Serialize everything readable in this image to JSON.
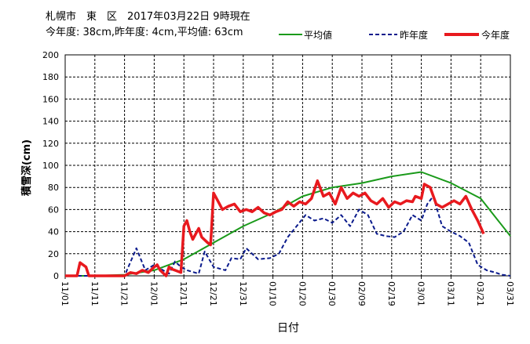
{
  "chart_data": {
    "type": "line",
    "title": "札幌市　東　区　2017年03月22日 9時現在",
    "subtitle": "今年度: 38cm,昨年度:  4cm,平均値: 63cm",
    "xlabel": "日付",
    "ylabel": "積雪深(cm)",
    "ylim": [
      0,
      200
    ],
    "yticks": [
      "0",
      "20",
      "40",
      "60",
      "80",
      "100",
      "120",
      "140",
      "160",
      "180",
      "200"
    ],
    "xlim": [
      "11/01",
      "03/31"
    ],
    "xticks": [
      "11/01",
      "11/11",
      "11/21",
      "12/01",
      "12/11",
      "12/21",
      "12/31",
      "01/10",
      "01/20",
      "01/30",
      "02/09",
      "02/19",
      "03/01",
      "03/11",
      "03/21",
      "03/31"
    ],
    "grid": true,
    "legend_position": "top-right",
    "series": [
      {
        "name": "平均値",
        "style": "solid",
        "color": "#1a9a1a",
        "x": [
          "11/01",
          "11/11",
          "11/21",
          "12/01",
          "12/11",
          "12/21",
          "12/31",
          "01/10",
          "01/20",
          "01/30",
          "02/09",
          "02/19",
          "03/01",
          "03/11",
          "03/21",
          "03/31"
        ],
        "y": [
          0,
          0,
          1,
          5,
          15,
          30,
          45,
          57,
          72,
          80,
          84,
          90,
          94,
          84,
          70,
          36
        ]
      },
      {
        "name": "昨年度",
        "style": "dashed",
        "color": "#0a1a8c",
        "x": [
          "11/01",
          "11/10",
          "11/21",
          "11/25",
          "11/28",
          "12/01",
          "12/04",
          "12/06",
          "12/08",
          "12/10",
          "12/12",
          "12/16",
          "12/18",
          "12/21",
          "12/25",
          "12/27",
          "12/30",
          "01/01",
          "01/05",
          "01/09",
          "01/12",
          "01/15",
          "01/18",
          "01/21",
          "01/24",
          "01/27",
          "01/30",
          "02/02",
          "02/05",
          "02/08",
          "02/11",
          "02/14",
          "02/17",
          "02/20",
          "02/23",
          "02/26",
          "03/01",
          "03/03",
          "03/05",
          "03/08",
          "03/11",
          "03/14",
          "03/17",
          "03/20",
          "03/23",
          "03/26",
          "03/28",
          "03/31"
        ],
        "y": [
          0,
          0,
          0,
          25,
          5,
          10,
          5,
          2,
          13,
          8,
          5,
          2,
          22,
          8,
          5,
          16,
          15,
          25,
          15,
          16,
          20,
          35,
          45,
          55,
          50,
          52,
          48,
          55,
          45,
          60,
          55,
          38,
          36,
          35,
          40,
          55,
          50,
          65,
          72,
          45,
          40,
          36,
          30,
          10,
          5,
          3,
          1,
          0
        ]
      },
      {
        "name": "今年度",
        "style": "solid",
        "color": "#e8191e",
        "x": [
          "11/01",
          "11/05",
          "11/06",
          "11/08",
          "11/09",
          "11/21",
          "11/23",
          "11/25",
          "11/27",
          "11/29",
          "12/01",
          "12/02",
          "12/03",
          "12/05",
          "12/06",
          "12/07",
          "12/08",
          "12/10",
          "12/11",
          "12/12",
          "12/13",
          "12/14",
          "12/15",
          "12/16",
          "12/17",
          "12/19",
          "12/20",
          "12/21",
          "12/22",
          "12/23",
          "12/24",
          "12/26",
          "12/28",
          "12/30",
          "01/01",
          "01/03",
          "01/05",
          "01/07",
          "01/09",
          "01/11",
          "01/13",
          "01/15",
          "01/17",
          "01/19",
          "01/21",
          "01/23",
          "01/25",
          "01/27",
          "01/29",
          "01/31",
          "02/02",
          "02/04",
          "02/06",
          "02/08",
          "02/10",
          "02/12",
          "02/14",
          "02/16",
          "02/18",
          "02/20",
          "02/22",
          "02/24",
          "02/26",
          "02/27",
          "03/01",
          "03/02",
          "03/04",
          "03/06",
          "03/08",
          "03/10",
          "03/12",
          "03/14",
          "03/16",
          "03/18",
          "03/20",
          "03/22"
        ],
        "y": [
          0,
          0,
          12,
          8,
          0,
          0,
          3,
          2,
          5,
          3,
          8,
          10,
          5,
          0,
          8,
          6,
          5,
          3,
          45,
          50,
          40,
          33,
          38,
          43,
          35,
          30,
          28,
          75,
          70,
          65,
          60,
          63,
          65,
          58,
          60,
          58,
          62,
          57,
          55,
          58,
          60,
          67,
          63,
          67,
          65,
          70,
          86,
          72,
          75,
          65,
          80,
          70,
          75,
          72,
          75,
          68,
          65,
          70,
          62,
          67,
          65,
          68,
          67,
          72,
          70,
          83,
          80,
          65,
          62,
          65,
          68,
          65,
          72,
          60,
          50,
          38
        ]
      }
    ]
  }
}
